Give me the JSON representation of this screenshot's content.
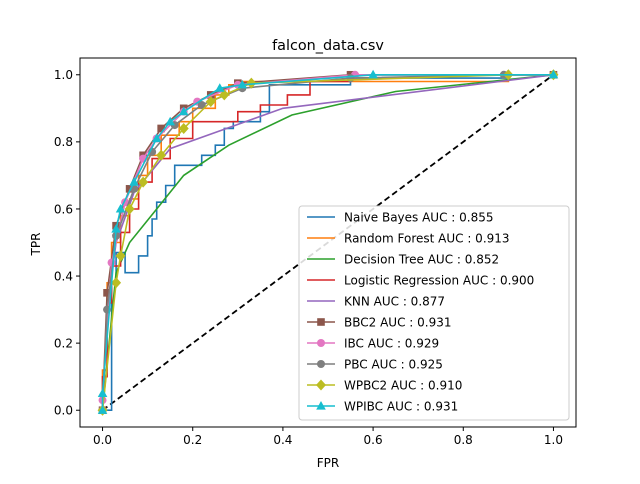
{
  "chart_data": {
    "type": "line",
    "title": "falcon_data.csv",
    "xlabel": "FPR",
    "ylabel": "TPR",
    "xlim": [
      -0.05,
      1.05
    ],
    "ylim": [
      -0.05,
      1.05
    ],
    "xticks": [
      "0.0",
      "0.2",
      "0.4",
      "0.6",
      "0.8",
      "1.0"
    ],
    "yticks": [
      "0.0",
      "0.2",
      "0.4",
      "0.6",
      "0.8",
      "1.0"
    ],
    "grid": false,
    "legend_position": "lower-right",
    "diagonal": {
      "x": [
        0,
        1
      ],
      "y": [
        0,
        1
      ],
      "color": "#000000",
      "style": "dashed"
    },
    "series": [
      {
        "name": "Naive Bayes AUC : 0.855",
        "color": "#1f77b4",
        "marker": "none",
        "step": true,
        "x": [
          0,
          0.02,
          0.02,
          0.03,
          0.03,
          0.05,
          0.05,
          0.08,
          0.08,
          0.1,
          0.1,
          0.11,
          0.11,
          0.12,
          0.12,
          0.14,
          0.14,
          0.16,
          0.16,
          0.22,
          0.22,
          0.25,
          0.25,
          0.27,
          0.27,
          0.29,
          0.29,
          0.35,
          0.35,
          0.37,
          0.37,
          0.55,
          0.55,
          0.9,
          0.9,
          1.0
        ],
        "y": [
          0,
          0,
          0.38,
          0.38,
          0.47,
          0.47,
          0.41,
          0.41,
          0.46,
          0.46,
          0.52,
          0.52,
          0.57,
          0.57,
          0.62,
          0.62,
          0.67,
          0.67,
          0.73,
          0.73,
          0.76,
          0.76,
          0.79,
          0.79,
          0.84,
          0.84,
          0.86,
          0.86,
          0.89,
          0.89,
          0.97,
          0.97,
          0.99,
          0.99,
          1.0,
          1.0
        ]
      },
      {
        "name": "Random Forest AUC : 0.913",
        "color": "#ff7f0e",
        "marker": "none",
        "step": true,
        "x": [
          0,
          0.0,
          0.01,
          0.01,
          0.02,
          0.02,
          0.04,
          0.04,
          0.06,
          0.06,
          0.08,
          0.08,
          0.1,
          0.1,
          0.13,
          0.13,
          0.17,
          0.17,
          0.2,
          0.2,
          0.25,
          0.25,
          0.28,
          0.28,
          0.31,
          0.31,
          0.9,
          0.9,
          1.0
        ],
        "y": [
          0,
          0.12,
          0.12,
          0.38,
          0.38,
          0.5,
          0.5,
          0.58,
          0.58,
          0.63,
          0.63,
          0.7,
          0.7,
          0.76,
          0.76,
          0.82,
          0.82,
          0.86,
          0.86,
          0.9,
          0.9,
          0.94,
          0.94,
          0.97,
          0.97,
          0.98,
          0.98,
          1.0,
          1.0
        ]
      },
      {
        "name": "Decision Tree AUC : 0.852",
        "color": "#2ca02c",
        "marker": "none",
        "step": false,
        "x": [
          0,
          0.03,
          0.06,
          0.12,
          0.18,
          0.28,
          0.42,
          0.65,
          1.0
        ],
        "y": [
          0,
          0.41,
          0.5,
          0.6,
          0.7,
          0.79,
          0.88,
          0.95,
          1.0
        ]
      },
      {
        "name": "Logistic Regression AUC : 0.900",
        "color": "#d62728",
        "marker": "none",
        "step": true,
        "x": [
          0,
          0.0,
          0.01,
          0.01,
          0.02,
          0.02,
          0.04,
          0.04,
          0.06,
          0.06,
          0.08,
          0.08,
          0.11,
          0.11,
          0.15,
          0.15,
          0.2,
          0.2,
          0.3,
          0.3,
          0.35,
          0.35,
          0.41,
          0.41,
          0.46,
          0.46,
          0.55,
          0.55,
          1.0
        ],
        "y": [
          0,
          0.1,
          0.1,
          0.32,
          0.32,
          0.43,
          0.43,
          0.53,
          0.53,
          0.6,
          0.6,
          0.68,
          0.68,
          0.75,
          0.75,
          0.81,
          0.81,
          0.86,
          0.86,
          0.89,
          0.89,
          0.91,
          0.91,
          0.94,
          0.94,
          0.98,
          0.98,
          1.0,
          1.0
        ]
      },
      {
        "name": "KNN AUC : 0.877",
        "color": "#9467bd",
        "marker": "none",
        "step": false,
        "x": [
          0,
          0.01,
          0.03,
          0.07,
          0.15,
          0.4,
          1.0
        ],
        "y": [
          0,
          0.3,
          0.5,
          0.65,
          0.78,
          0.9,
          1.0
        ]
      },
      {
        "name": "BBC2 AUC : 0.931",
        "color": "#8c564b",
        "marker": "square",
        "step": false,
        "x": [
          0,
          0.01,
          0.03,
          0.06,
          0.09,
          0.13,
          0.18,
          0.24,
          0.3,
          0.55,
          1.0
        ],
        "y": [
          0,
          0.35,
          0.55,
          0.66,
          0.76,
          0.84,
          0.9,
          0.94,
          0.975,
          1.0,
          1.0
        ]
      },
      {
        "name": "IBC AUC : 0.929",
        "color": "#e377c2",
        "marker": "circle",
        "step": false,
        "x": [
          0,
          0.0,
          0.02,
          0.05,
          0.09,
          0.12,
          0.18,
          0.21,
          0.3,
          0.56,
          1.0
        ],
        "y": [
          0,
          0.03,
          0.44,
          0.62,
          0.75,
          0.81,
          0.89,
          0.92,
          0.97,
          1.0,
          1.0
        ]
      },
      {
        "name": "PBC AUC : 0.925",
        "color": "#7f7f7f",
        "marker": "circle",
        "step": false,
        "x": [
          0,
          0.01,
          0.03,
          0.07,
          0.11,
          0.16,
          0.22,
          0.31,
          0.55,
          0.89,
          1.0
        ],
        "y": [
          0,
          0.3,
          0.52,
          0.66,
          0.77,
          0.85,
          0.91,
          0.96,
          0.99,
          1.0,
          1.0
        ]
      },
      {
        "name": "WPBC2 AUC : 0.910",
        "color": "#bcbd22",
        "marker": "diamond",
        "step": false,
        "x": [
          0,
          0.03,
          0.04,
          0.06,
          0.09,
          0.13,
          0.18,
          0.24,
          0.27,
          0.33,
          0.9,
          1.0
        ],
        "y": [
          0,
          0.38,
          0.46,
          0.6,
          0.68,
          0.76,
          0.84,
          0.92,
          0.94,
          0.975,
          1.0,
          1.0
        ]
      },
      {
        "name": "WPIBC AUC : 0.931",
        "color": "#17becf",
        "marker": "triangle",
        "step": false,
        "x": [
          0,
          0.0,
          0.03,
          0.04,
          0.07,
          0.12,
          0.15,
          0.18,
          0.26,
          0.31,
          0.6,
          1.0
        ],
        "y": [
          0,
          0.05,
          0.54,
          0.6,
          0.68,
          0.81,
          0.86,
          0.89,
          0.96,
          0.97,
          1.0,
          1.0
        ]
      }
    ]
  }
}
